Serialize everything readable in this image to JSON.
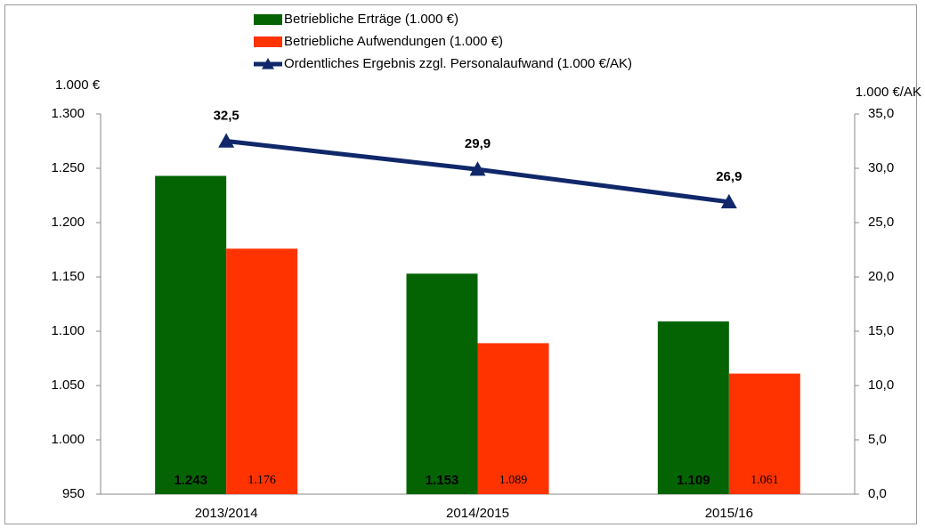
{
  "chart_data": {
    "type": "bar-line",
    "categories": [
      "2013/2014",
      "2014/2015",
      "2015/16"
    ],
    "y_axis_label": "1.000 €",
    "y2_axis_label": "1.000 €/AK",
    "series": [
      {
        "name": "Betriebliche Erträge (1.000 €)",
        "color": "#046404",
        "type": "bar",
        "values": [
          1243,
          1153,
          1109
        ],
        "value_labels": [
          "1.243",
          "1.153",
          "1.109"
        ]
      },
      {
        "name": "Betriebliche Aufwendungen (1.000 €)",
        "color": "#ff3300",
        "type": "bar",
        "values": [
          1176,
          1089,
          1061
        ],
        "value_labels": [
          "1.176",
          "1.089",
          "1.061"
        ]
      },
      {
        "name": "Ordentliches Ergebnis zzgl. Personalaufwand (1.000 €/AK)",
        "color": "#10286a",
        "type": "line",
        "axis": "y2",
        "values": [
          32.5,
          29.9,
          26.9
        ],
        "value_labels": [
          "32,5",
          "29,9",
          "26,9"
        ]
      }
    ],
    "ylim": [
      950,
      1300
    ],
    "yticks": [
      950,
      {
        "value": 1000,
        "label": "1.000"
      },
      {
        "value": 1050,
        "label": "1.050"
      },
      {
        "value": 1100,
        "label": "1.100"
      },
      {
        "value": 1150,
        "label": "1.150"
      },
      {
        "value": 1200,
        "label": "1.200"
      },
      {
        "value": 1250,
        "label": "1.250"
      },
      {
        "value": 1300,
        "label": "1.300"
      }
    ],
    "y2lim": [
      0,
      35
    ],
    "y2ticks": [
      {
        "value": 0,
        "label": "0,0"
      },
      {
        "value": 5,
        "label": "5,0"
      },
      {
        "value": 10,
        "label": "10,0"
      },
      {
        "value": 15,
        "label": "15,0"
      },
      {
        "value": 20,
        "label": "20,0"
      },
      {
        "value": 25,
        "label": "25,0"
      },
      {
        "value": 30,
        "label": "30,0"
      },
      {
        "value": 35,
        "label": "35,0"
      }
    ],
    "grid": false
  }
}
